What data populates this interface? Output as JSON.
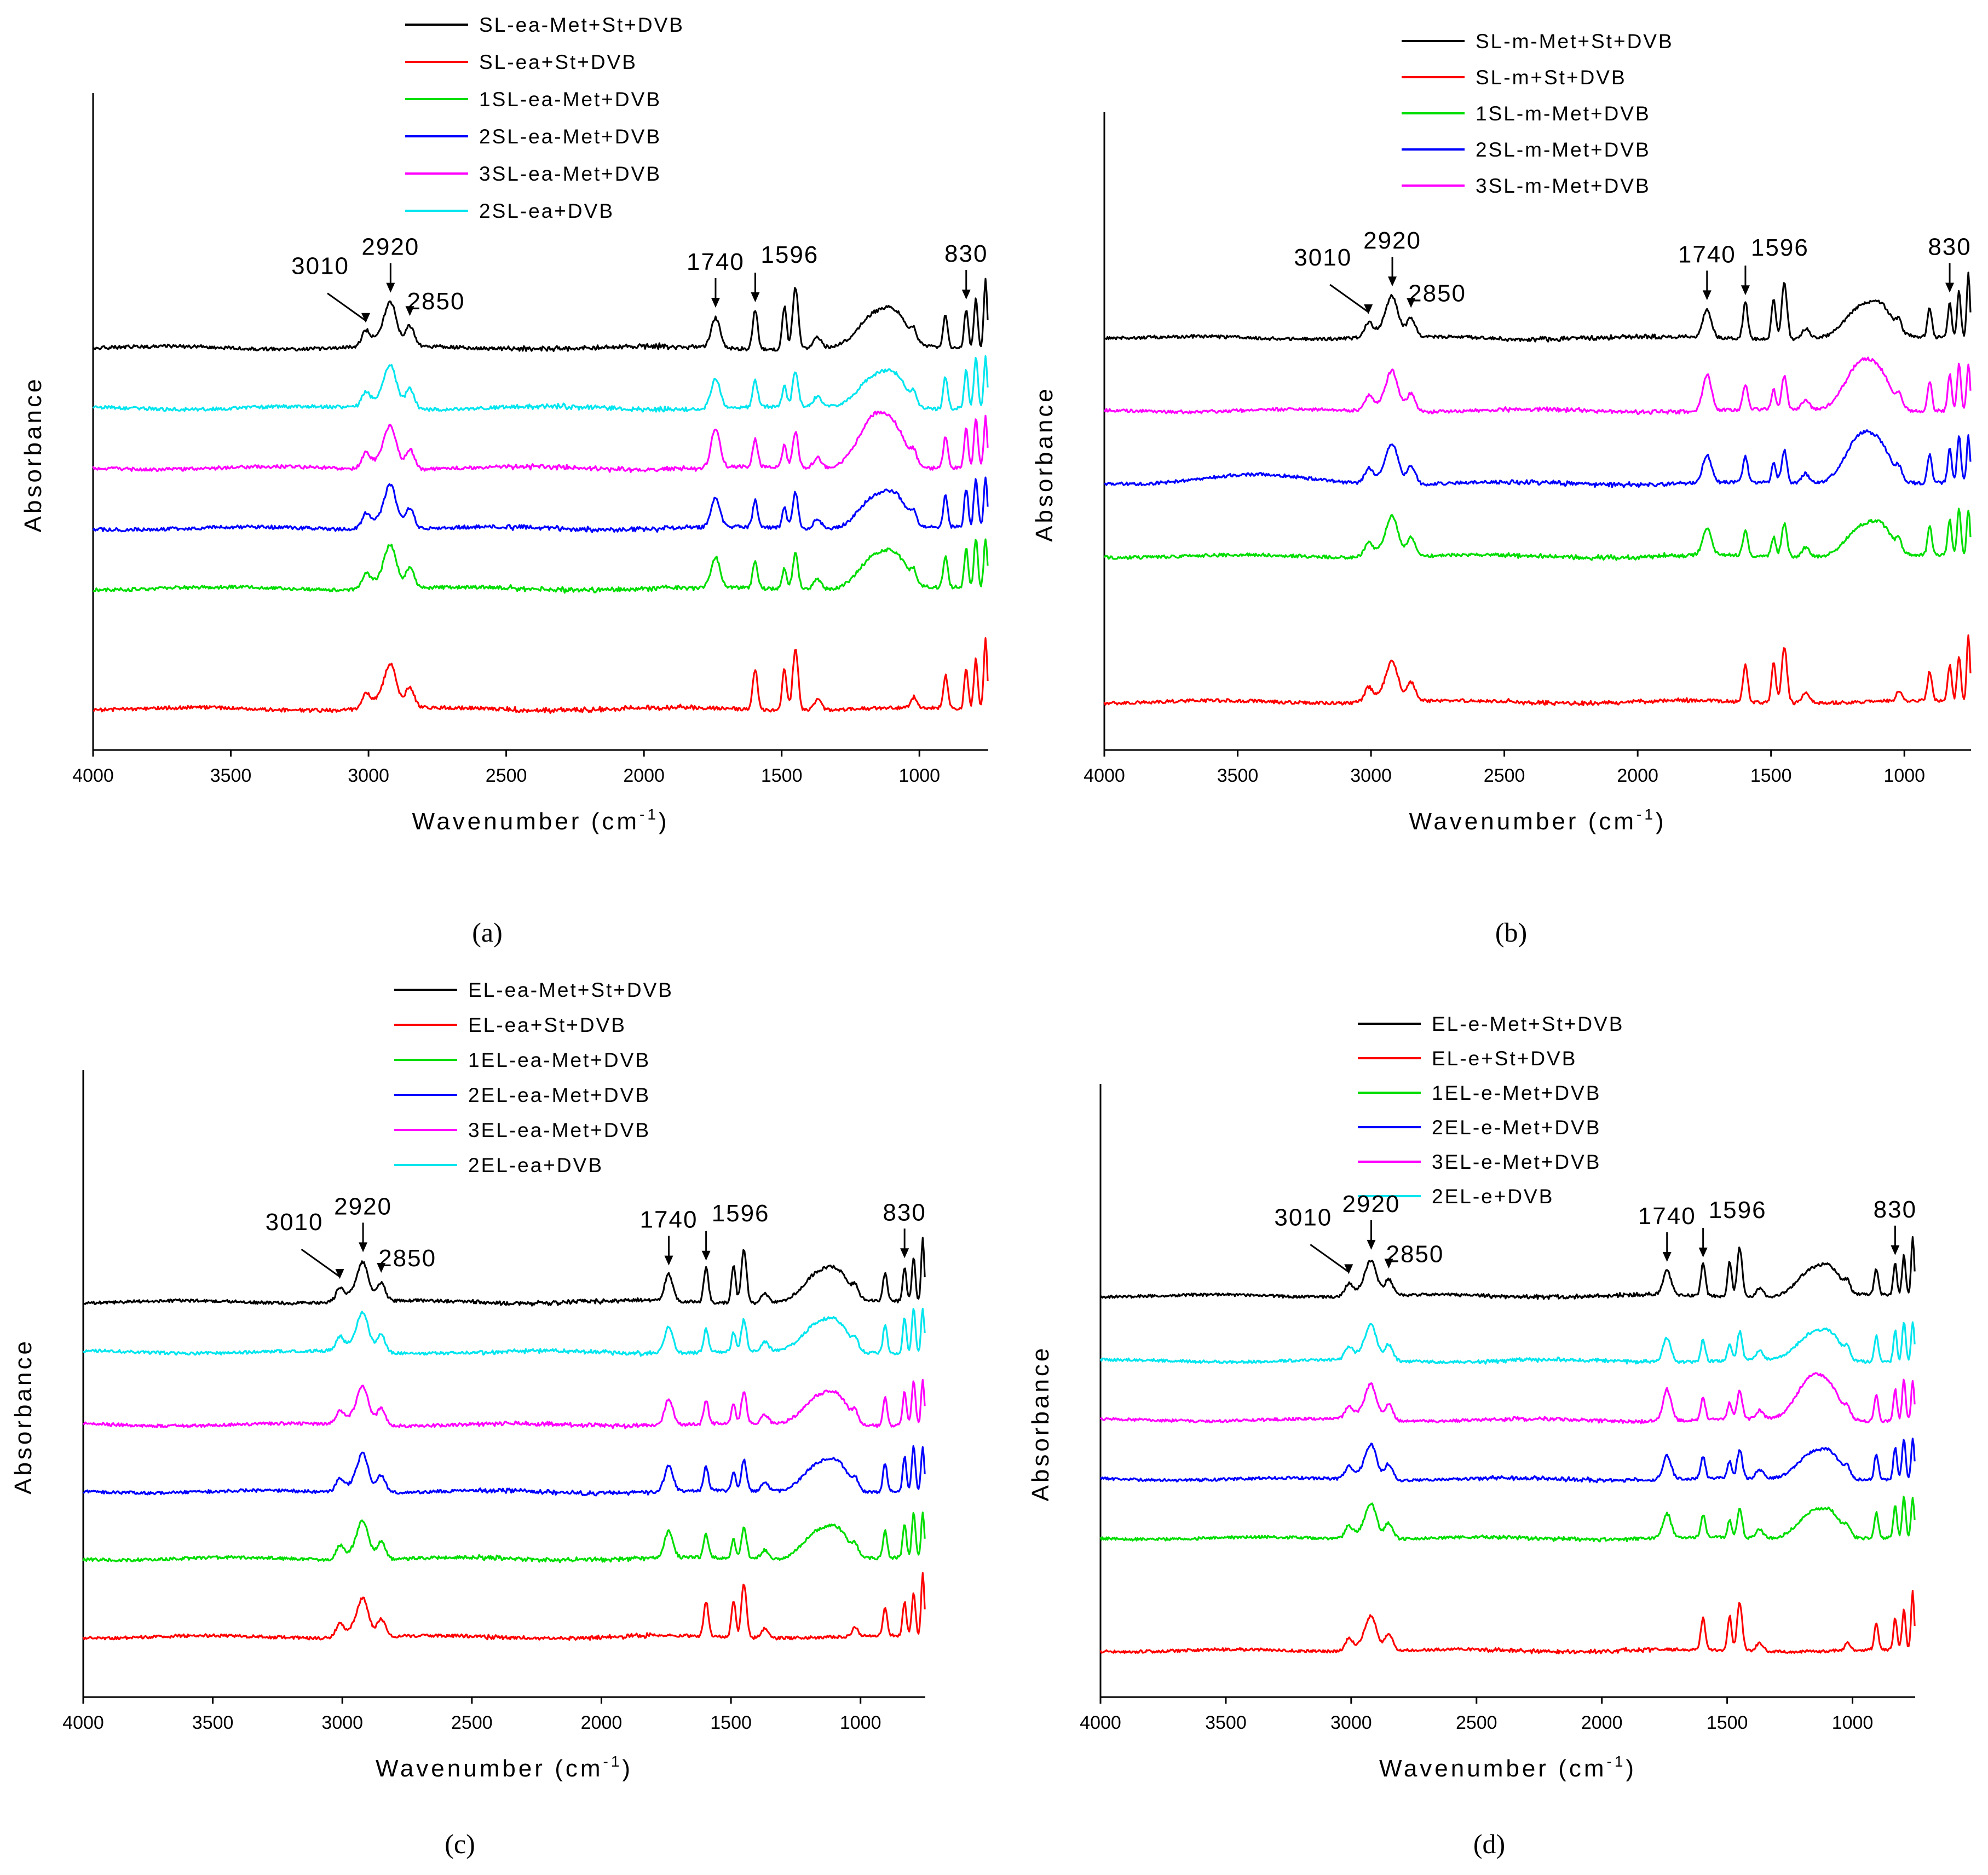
{
  "chart_data": [
    {
      "type": "line",
      "panel_label": "(a)",
      "xlabel": "Wavenumber (cm",
      "xlabel_exponent": "-1",
      "xlabel_suffix": ")",
      "ylabel": "Absorbance",
      "xlim": [
        4000,
        750
      ],
      "x_ticks": [
        "4000",
        "3500",
        "3000",
        "2500",
        "2000",
        "1500",
        "1000"
      ],
      "grid": false,
      "legend_position": "top-center",
      "series": [
        {
          "name": "SL-ea-Met+St+DVB",
          "color": "#000000",
          "baseline": 6.0,
          "style": "met_st"
        },
        {
          "name": "SL-ea+St+DVB",
          "color": "#ff0000",
          "baseline": 0.0,
          "style": "st"
        },
        {
          "name": "1SL-ea-Met+DVB",
          "color": "#00dd00",
          "baseline": 2.0,
          "style": "met"
        },
        {
          "name": "2SL-ea-Met+DVB",
          "color": "#0000ff",
          "baseline": 3.0,
          "style": "met"
        },
        {
          "name": "3SL-ea-Met+DVB",
          "color": "#ff00ff",
          "baseline": 4.0,
          "style": "met3"
        },
        {
          "name": "2SL-ea+DVB",
          "color": "#00e5ee",
          "baseline": 5.0,
          "style": "dvb"
        }
      ],
      "annotations": [
        "3010",
        "2920",
        "2850",
        "1740",
        "1596",
        "830"
      ]
    },
    {
      "type": "line",
      "panel_label": "(b)",
      "xlabel": "Wavenumber (cm",
      "xlabel_exponent": "-1",
      "xlabel_suffix": ")",
      "ylabel": "Absorbance",
      "xlim": [
        4000,
        750
      ],
      "x_ticks": [
        "4000",
        "3500",
        "3000",
        "2500",
        "2000",
        "1500",
        "1000"
      ],
      "grid": false,
      "legend_position": "top-center",
      "series": [
        {
          "name": "SL-m-Met+St+DVB",
          "color": "#000000",
          "baseline": 5.0,
          "style": "met_st"
        },
        {
          "name": "SL-m+St+DVB",
          "color": "#ff0000",
          "baseline": 0.0,
          "style": "st"
        },
        {
          "name": "1SL-m-Met+DVB",
          "color": "#00dd00",
          "baseline": 2.0,
          "style": "met"
        },
        {
          "name": "2SL-m-Met+DVB",
          "color": "#0000ff",
          "baseline": 3.0,
          "style": "met2b"
        },
        {
          "name": "3SL-m-Met+DVB",
          "color": "#ff00ff",
          "baseline": 4.0,
          "style": "met3"
        }
      ],
      "annotations": [
        "3010",
        "2920",
        "2850",
        "1740",
        "1596",
        "830"
      ]
    },
    {
      "type": "line",
      "panel_label": "(c)",
      "xlabel": "Wavenumber (cm",
      "xlabel_exponent": "-1",
      "xlabel_suffix": ")",
      "ylabel": "Absorbance",
      "xlim": [
        4000,
        750
      ],
      "x_ticks": [
        "4000",
        "3500",
        "3000",
        "2500",
        "2000",
        "1500",
        "1000"
      ],
      "grid": false,
      "legend_position": "top-center",
      "series": [
        {
          "name": "EL-ea-Met+St+DVB",
          "color": "#000000",
          "baseline": 6.0,
          "style": "met_st"
        },
        {
          "name": "EL-ea+St+DVB",
          "color": "#ff0000",
          "baseline": 0.0,
          "style": "st"
        },
        {
          "name": "1EL-ea-Met+DVB",
          "color": "#00dd00",
          "baseline": 1.4,
          "style": "met"
        },
        {
          "name": "2EL-ea-Met+DVB",
          "color": "#0000ff",
          "baseline": 2.6,
          "style": "met"
        },
        {
          "name": "3EL-ea-Met+DVB",
          "color": "#ff00ff",
          "baseline": 3.8,
          "style": "met"
        },
        {
          "name": "2EL-ea+DVB",
          "color": "#00e5ee",
          "baseline": 5.1,
          "style": "dvb"
        }
      ],
      "annotations": [
        "3010",
        "2920",
        "2850",
        "1740",
        "1596",
        "830"
      ]
    },
    {
      "type": "line",
      "panel_label": "(d)",
      "xlabel": "Wavenumber (cm",
      "xlabel_exponent": "-1",
      "xlabel_suffix": ")",
      "ylabel": "Absorbance",
      "xlim": [
        4000,
        750
      ],
      "x_ticks": [
        "4000",
        "3500",
        "3000",
        "2500",
        "2000",
        "1500",
        "1000"
      ],
      "grid": false,
      "legend_position": "top-center",
      "series": [
        {
          "name": "EL-e-Met+St+DVB",
          "color": "#000000",
          "baseline": 6.0,
          "style": "met_st"
        },
        {
          "name": "EL-e+St+DVB",
          "color": "#ff0000",
          "baseline": 0.0,
          "style": "st"
        },
        {
          "name": "1EL-e-Met+DVB",
          "color": "#00dd00",
          "baseline": 1.9,
          "style": "met"
        },
        {
          "name": "2EL-e-Met+DVB",
          "color": "#0000ff",
          "baseline": 2.9,
          "style": "met"
        },
        {
          "name": "3EL-e-Met+DVB",
          "color": "#ff00ff",
          "baseline": 3.9,
          "style": "met3"
        },
        {
          "name": "2EL-e+DVB",
          "color": "#00e5ee",
          "baseline": 4.9,
          "style": "dvb"
        }
      ],
      "annotations": [
        "3010",
        "2920",
        "2850",
        "1740",
        "1596",
        "830"
      ]
    }
  ]
}
